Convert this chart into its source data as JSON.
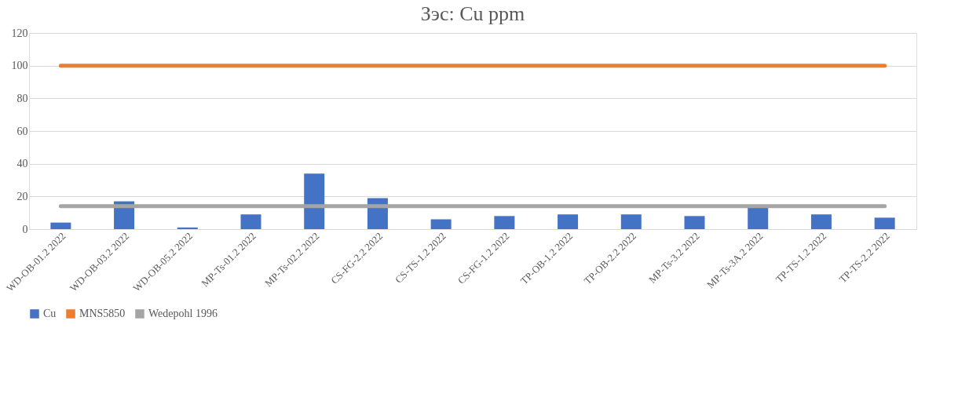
{
  "chart_data": {
    "type": "bar",
    "title": "Зэс: Cu ppm",
    "categories": [
      "WD-OB-01.2 2022",
      "WD-OB-03.2 2022",
      "WD-OB-05.2 2022",
      "MP-Ts-01.2 2022",
      "MP-Ts-02.2 2022",
      "CS-FG-2.2 2022",
      "CS-TS-1.2 2022",
      "CS-FG-1.2 2022",
      "TP-OB-1.2 2022",
      "TP-OB-2.2 2022",
      "MP-Ts-3.2 2022",
      "MP-Ts-3A.2 2022",
      "TP-TS-1.2 2022",
      "TP-TS-2.2 2022"
    ],
    "series": [
      {
        "name": "Cu",
        "color": "#4472c4",
        "values": [
          4,
          17,
          1,
          9,
          34,
          19,
          6,
          8,
          9,
          9,
          8,
          13,
          9,
          7
        ]
      },
      {
        "name": "MNS5850",
        "color": "#ed7d31",
        "type": "line",
        "values": [
          100,
          100,
          100,
          100,
          100,
          100,
          100,
          100,
          100,
          100,
          100,
          100,
          100,
          100
        ]
      },
      {
        "name": "Wedepohl 1996",
        "color": "#a5a5a5",
        "type": "line",
        "values": [
          14,
          14,
          14,
          14,
          14,
          14,
          14,
          14,
          14,
          14,
          14,
          14,
          14,
          14
        ]
      }
    ],
    "ylim": [
      0,
      120
    ],
    "yticks": [
      0,
      20,
      40,
      60,
      80,
      100,
      120
    ],
    "grid": "y",
    "legend": "bottom"
  }
}
